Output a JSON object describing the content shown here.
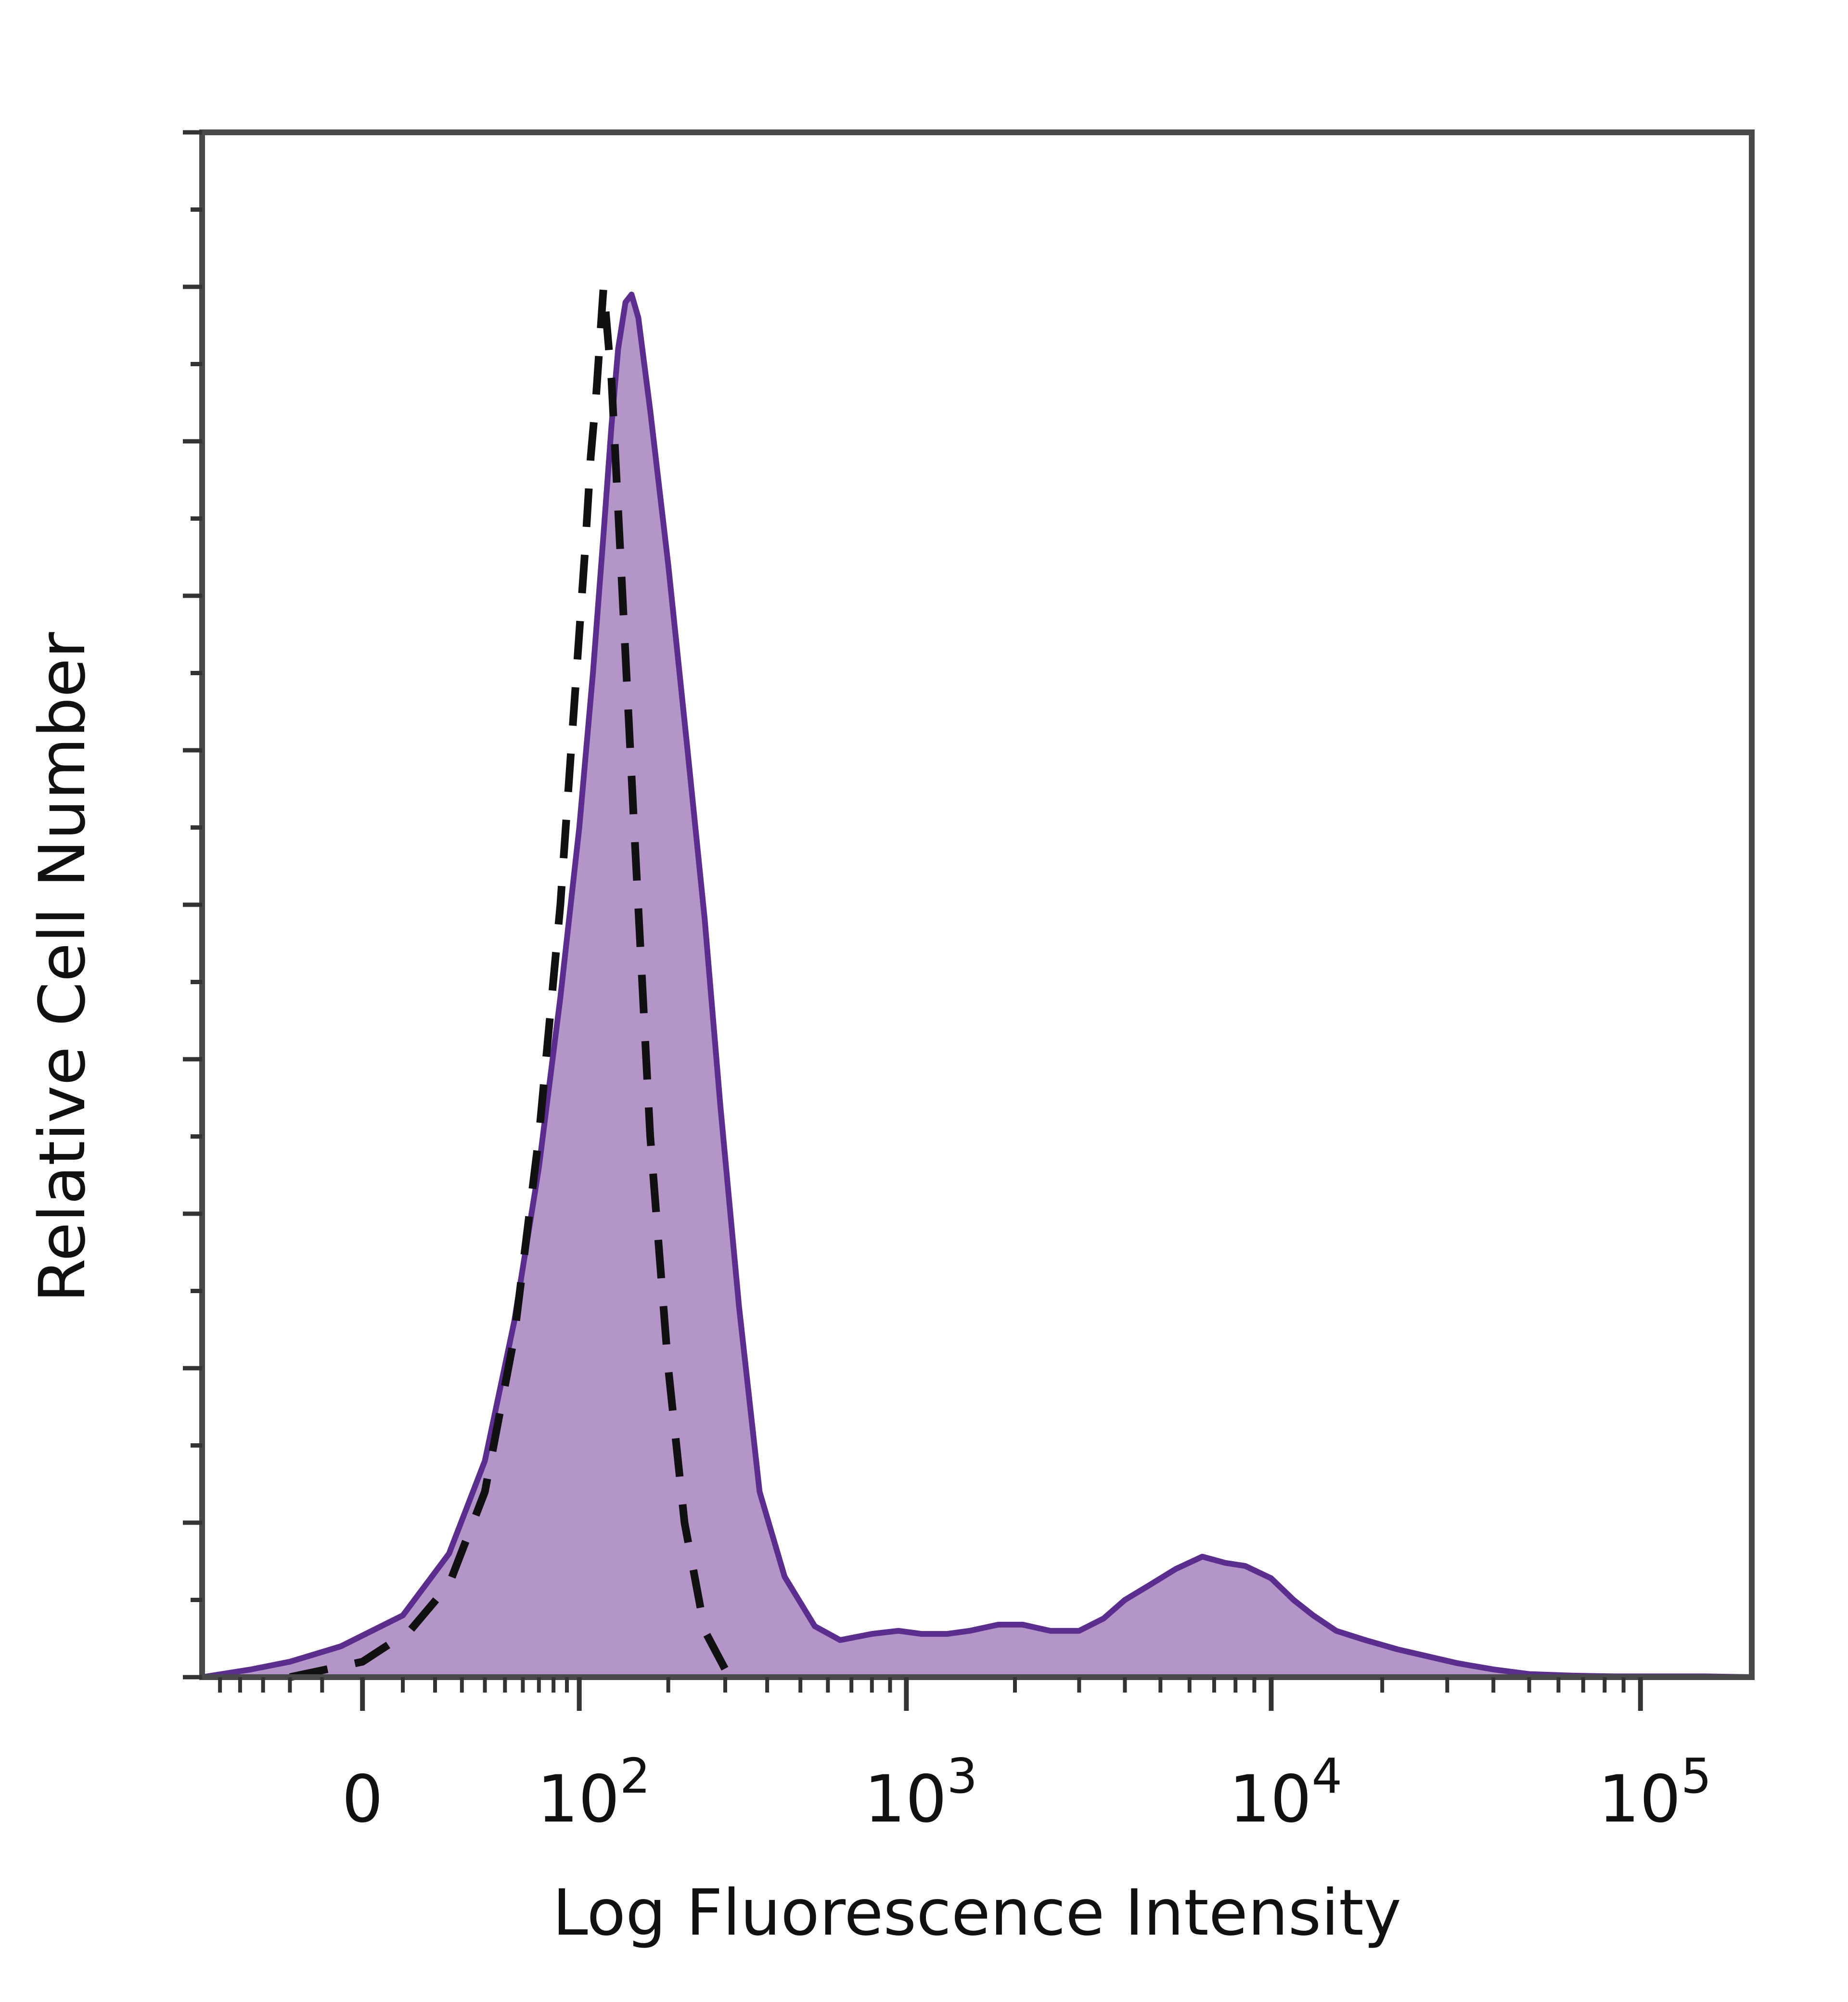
{
  "chart_data": {
    "type": "area",
    "xlabel": "Log Fluorescence Intensity",
    "ylabel": "Relative Cell Number",
    "x_scale": "biexponential",
    "x_ticks": [
      {
        "value": 0,
        "label": "0",
        "base": "0",
        "exp": ""
      },
      {
        "value": 100,
        "label": "10^2",
        "base": "10",
        "exp": "2"
      },
      {
        "value": 1000,
        "label": "10^3",
        "base": "10",
        "exp": "3"
      },
      {
        "value": 10000,
        "label": "10^4",
        "base": "10",
        "exp": "4"
      },
      {
        "value": 100000,
        "label": "10^5",
        "base": "10",
        "exp": "5"
      }
    ],
    "xlim": [
      -60,
      200000
    ],
    "ylim": [
      0,
      100
    ],
    "grid": false,
    "legend": "none",
    "series": [
      {
        "style": "filled",
        "color": "#b395c8",
        "stroke": "#5b2d8e",
        "x": [
          -60,
          -35,
          -20,
          -5,
          10,
          25,
          40,
          55,
          70,
          85,
          100,
          112,
          122,
          130,
          137,
          145,
          152,
          160,
          175,
          200,
          230,
          260,
          290,
          330,
          380,
          450,
          550,
          650,
          800,
          950,
          1100,
          1300,
          1500,
          1800,
          2100,
          2500,
          3000,
          3500,
          4000,
          4700,
          5500,
          6500,
          7500,
          8500,
          10000,
          11500,
          13000,
          15000,
          18000,
          22000,
          26000,
          32000,
          40000,
          50000,
          65000,
          85000,
          110000,
          150000,
          200000
        ],
        "y": [
          0,
          0.5,
          1,
          2,
          4,
          8,
          14,
          23,
          33,
          44,
          55,
          65,
          74,
          81,
          86,
          89,
          89.5,
          88,
          82,
          72,
          60,
          49,
          37,
          24,
          12,
          6.5,
          3.3,
          2.4,
          2.8,
          3.0,
          2.8,
          2.8,
          3.0,
          3.4,
          3.4,
          3.0,
          3.0,
          3.8,
          5.0,
          6.0,
          7.0,
          7.8,
          7.4,
          7.2,
          6.4,
          5.0,
          4.0,
          3.0,
          2.4,
          1.8,
          1.4,
          0.9,
          0.5,
          0.2,
          0.1,
          0.05,
          0.05,
          0.05,
          0
        ]
      },
      {
        "style": "dashed",
        "color": "#111111",
        "x": [
          -20,
          0,
          12,
          25,
          40,
          55,
          70,
          85,
          95,
          105,
          110,
          115,
          122,
          130,
          140,
          155,
          175,
          200,
          225,
          260,
          300,
          350
        ],
        "y": [
          0,
          1,
          3,
          6,
          12,
          22,
          35,
          50,
          62,
          73,
          79,
          83,
          90,
          84,
          72,
          55,
          35,
          20,
          10,
          3,
          0.5,
          0
        ]
      }
    ]
  }
}
